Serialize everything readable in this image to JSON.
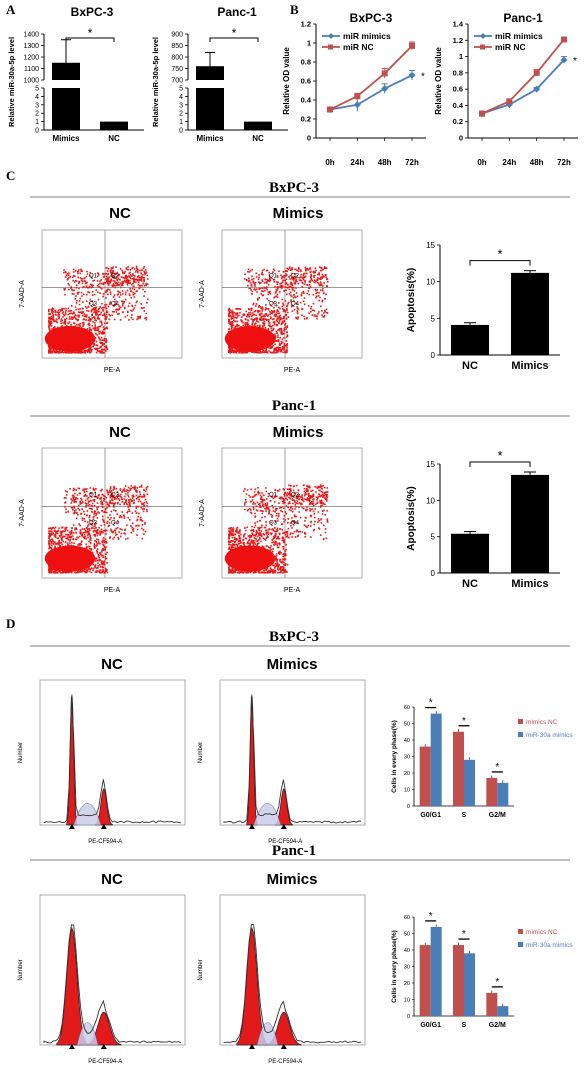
{
  "panels": {
    "A": "A",
    "B": "B",
    "C": "C",
    "D": "D"
  },
  "sections": {
    "c_bxpc3": "BxPC-3",
    "c_panc1": "Panc-1",
    "d_bxpc3": "BxPC-3",
    "d_panc1": "Panc-1"
  },
  "cond": {
    "nc": "NC",
    "mimics": "Mimics"
  },
  "flow_labels": {
    "y": "7-AAD-A",
    "x": "PE-A",
    "q1": "Q1",
    "q2": "Q2",
    "q3": "Q3",
    "q4": "Q4"
  },
  "cycle_labels": {
    "y": "Number",
    "x": "PE-CF594-A"
  },
  "chart_data": [
    {
      "id": "A-BxPC3",
      "type": "bar",
      "title": "BxPC-3",
      "ylabel": "Relative miR-30a-5p level",
      "categories": [
        "Mimics",
        "NC"
      ],
      "values": [
        1150,
        1
      ],
      "errors": [
        200,
        0.1
      ],
      "yticks": [
        "0",
        "1",
        "2",
        "3",
        "4",
        "5",
        "1000",
        "1100",
        "1200",
        "1300",
        "1400"
      ],
      "annotation": "*"
    },
    {
      "id": "A-Panc1",
      "type": "bar",
      "title": "Panc-1",
      "ylabel": "Relative miR-30a-5p level",
      "categories": [
        "Mimics",
        "NC"
      ],
      "values": [
        760,
        1
      ],
      "errors": [
        60,
        0.1
      ],
      "yticks": [
        "0",
        "1",
        "2",
        "3",
        "4",
        "5",
        "700",
        "750",
        "800",
        "850",
        "900"
      ],
      "annotation": "*"
    },
    {
      "id": "B-BxPC3",
      "type": "line",
      "title": "BxPC-3",
      "ylabel": "Relative OD value",
      "x": [
        "0h",
        "24h",
        "48h",
        "72h"
      ],
      "ylim": [
        0,
        1.2
      ],
      "yticks": [
        "0",
        "0.2",
        "0.4",
        "0.6",
        "0.8",
        "1",
        "1.2"
      ],
      "series": [
        {
          "name": "miR mimics",
          "color": "#4a7eb8",
          "values": [
            0.3,
            0.35,
            0.52,
            0.66
          ],
          "errors": [
            0.02,
            0.07,
            0.05,
            0.05
          ]
        },
        {
          "name": "miR NC",
          "color": "#c0504d",
          "values": [
            0.3,
            0.44,
            0.68,
            0.97
          ],
          "errors": [
            0.02,
            0.03,
            0.05,
            0.04
          ]
        }
      ],
      "annotation": "*"
    },
    {
      "id": "B-Panc1",
      "type": "line",
      "title": "Panc-1",
      "ylabel": "Relative OD value",
      "x": [
        "0h",
        "24h",
        "48h",
        "72h"
      ],
      "ylim": [
        0,
        1.4
      ],
      "yticks": [
        "0",
        "0.2",
        "0.4",
        "0.6",
        "0.8",
        "1",
        "1.2",
        "1.4"
      ],
      "series": [
        {
          "name": "miR mimics",
          "color": "#4a7eb8",
          "values": [
            0.3,
            0.41,
            0.6,
            0.96
          ],
          "errors": [
            0.02,
            0.02,
            0.02,
            0.04
          ]
        },
        {
          "name": "miR NC",
          "color": "#c0504d",
          "values": [
            0.3,
            0.45,
            0.8,
            1.21
          ],
          "errors": [
            0.02,
            0.02,
            0.04,
            0.03
          ]
        }
      ],
      "annotation": "*"
    },
    {
      "id": "C-BxPC3",
      "type": "bar",
      "ylabel": "Apoptosis(%)",
      "categories": [
        "NC",
        "Mimics"
      ],
      "values": [
        4.1,
        11.2
      ],
      "errors": [
        0.3,
        0.3
      ],
      "ylim": [
        0,
        15
      ],
      "yticks": [
        "0",
        "5",
        "10",
        "15"
      ],
      "annotation": "*"
    },
    {
      "id": "C-Panc1",
      "type": "bar",
      "ylabel": "Apoptosis(%)",
      "categories": [
        "NC",
        "Mimics"
      ],
      "values": [
        5.4,
        13.5
      ],
      "errors": [
        0.3,
        0.4
      ],
      "ylim": [
        0,
        15
      ],
      "yticks": [
        "0",
        "5",
        "10",
        "15"
      ],
      "annotation": "*"
    },
    {
      "id": "D-BxPC3",
      "type": "bar",
      "ylabel": "Cells in every phase(%)",
      "categories": [
        "G0/G1",
        "S",
        "G2/M"
      ],
      "ylim": [
        0,
        60
      ],
      "yticks": [
        "0",
        "10",
        "20",
        "30",
        "40",
        "50",
        "60"
      ],
      "series": [
        {
          "name": "mimics NC",
          "color": "#c0504d",
          "values": [
            36,
            45,
            17
          ]
        },
        {
          "name": "miR-30a mimics",
          "color": "#4a7eb8",
          "values": [
            56,
            28,
            14
          ]
        }
      ],
      "annotation": "*"
    },
    {
      "id": "D-Panc1",
      "type": "bar",
      "ylabel": "Cells in every phase(%)",
      "categories": [
        "G0/G1",
        "S",
        "G2/M"
      ],
      "ylim": [
        0,
        60
      ],
      "yticks": [
        "0",
        "10",
        "20",
        "30",
        "40",
        "50",
        "60"
      ],
      "series": [
        {
          "name": "mimics NC",
          "color": "#c0504d",
          "values": [
            43,
            43,
            14
          ]
        },
        {
          "name": "miR-30a mimics",
          "color": "#4a7eb8",
          "values": [
            54,
            38,
            6
          ]
        }
      ],
      "annotation": "*"
    }
  ]
}
